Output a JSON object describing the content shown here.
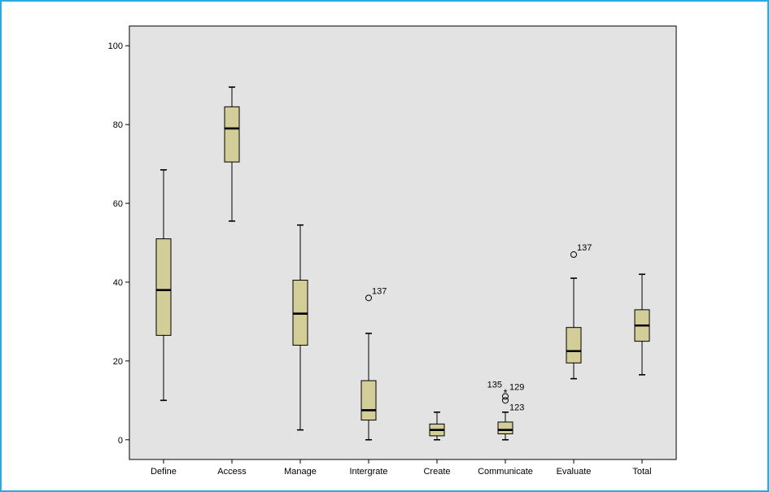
{
  "chart_data": {
    "type": "boxplot",
    "title": "",
    "xlabel": "",
    "ylabel": "",
    "ylim": [
      -5,
      105
    ],
    "yticks": [
      0,
      20,
      40,
      60,
      80,
      100
    ],
    "grid": false,
    "colors": {
      "plot_bg": "#e3e3e3",
      "box_fill": "#d3cd98",
      "frame": "#29abe2"
    },
    "categories": [
      "Define",
      "Access",
      "Manage",
      "Intergrate",
      "Create",
      "Communicate",
      "Evaluate",
      "Total"
    ],
    "boxes": [
      {
        "category": "Define",
        "min": 10,
        "q1": 26.5,
        "median": 38,
        "q3": 51,
        "max": 68.5,
        "outliers": []
      },
      {
        "category": "Access",
        "min": 55.5,
        "q1": 70.5,
        "median": 79,
        "q3": 84.5,
        "max": 89.5,
        "outliers": []
      },
      {
        "category": "Manage",
        "min": 2.5,
        "q1": 24,
        "median": 32,
        "q3": 40.5,
        "max": 54.5,
        "outliers": []
      },
      {
        "category": "Intergrate",
        "min": 0,
        "q1": 5,
        "median": 7.5,
        "q3": 15,
        "max": 27,
        "outliers": [
          {
            "value": 36,
            "label": "137",
            "marker": "circle"
          }
        ]
      },
      {
        "category": "Create",
        "min": 0,
        "q1": 1,
        "median": 2.5,
        "q3": 4,
        "max": 7,
        "outliers": []
      },
      {
        "category": "Communicate",
        "min": 0,
        "q1": 1.5,
        "median": 2.5,
        "q3": 4.5,
        "max": 7,
        "outliers": [
          {
            "value": 12,
            "label": "135",
            "marker": "star"
          },
          {
            "value": 11,
            "label": "129",
            "marker": "circle"
          },
          {
            "value": 10,
            "label": "123",
            "marker": "circle"
          }
        ]
      },
      {
        "category": "Evaluate",
        "min": 15.5,
        "q1": 19.5,
        "median": 22.5,
        "q3": 28.5,
        "max": 41,
        "outliers": [
          {
            "value": 47,
            "label": "137",
            "marker": "circle"
          }
        ]
      },
      {
        "category": "Total",
        "min": 16.5,
        "q1": 25,
        "median": 29,
        "q3": 33,
        "max": 42,
        "outliers": []
      }
    ]
  }
}
